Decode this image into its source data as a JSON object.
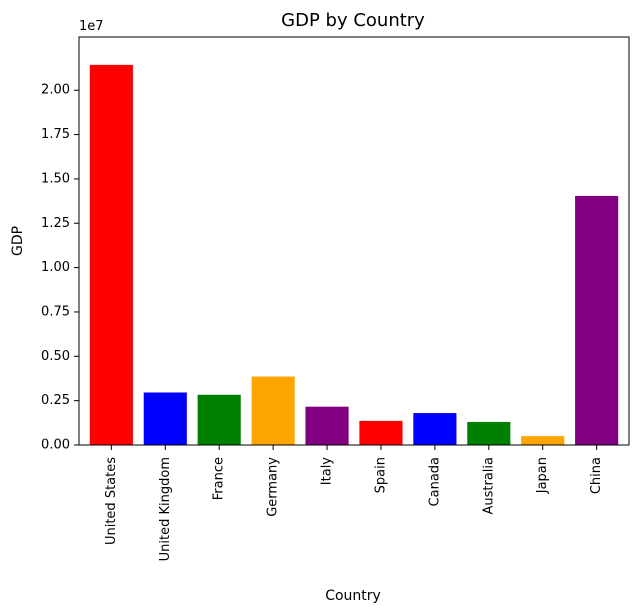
{
  "chart_data": {
    "type": "bar",
    "title": "GDP by Country",
    "xlabel": "Country",
    "ylabel": "GDP",
    "offset_text": "1e7",
    "scale": 10000000,
    "ylim": [
      0,
      23000000
    ],
    "yticks": [
      0,
      2500000,
      5000000,
      7500000,
      10000000,
      12500000,
      15000000,
      17500000,
      20000000
    ],
    "ytick_labels": [
      "0.00",
      "0.25",
      "0.50",
      "0.75",
      "1.00",
      "1.25",
      "1.50",
      "1.75",
      "2.00"
    ],
    "categories": [
      "United States",
      "United Kingdom",
      "France",
      "Germany",
      "Italy",
      "Spain",
      "Canada",
      "Australia",
      "Japan",
      "China"
    ],
    "values": [
      21430000,
      2960000,
      2830000,
      3860000,
      2160000,
      1360000,
      1800000,
      1300000,
      500000,
      14040000
    ],
    "colors": [
      "#ff0000",
      "#0000ff",
      "#008000",
      "#ffa500",
      "#800080",
      "#ff0000",
      "#0000ff",
      "#008000",
      "#ffa500",
      "#800080"
    ],
    "grid": false,
    "legend": "none"
  }
}
